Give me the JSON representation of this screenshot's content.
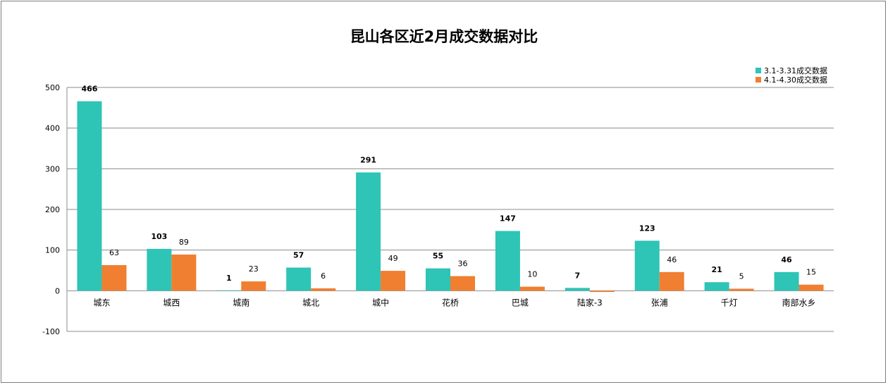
{
  "chart_data": {
    "type": "bar",
    "title": "昆山各区近2月成交数据对比",
    "categories": [
      "城东",
      "城西",
      "城南",
      "城北",
      "城中",
      "花桥",
      "巴城",
      "陆家-3",
      "张浦",
      "千灯",
      "南部水乡"
    ],
    "series": [
      {
        "name": "3.1-3.31成交数据",
        "color": "#2ec4b6",
        "values": [
          466,
          103,
          1,
          57,
          291,
          55,
          147,
          7,
          123,
          21,
          46
        ],
        "labels": [
          "466",
          "103",
          "1",
          "57",
          "291",
          "55",
          "147",
          "7",
          "123",
          "21",
          "46"
        ]
      },
      {
        "name": "4.1-4.30成交数据",
        "color": "#f07f31",
        "values": [
          63,
          89,
          23,
          6,
          49,
          36,
          10,
          -3,
          46,
          5,
          15
        ],
        "labels": [
          "63",
          "89",
          "23",
          "6",
          "49",
          "36",
          "10",
          "",
          "46",
          "5",
          "15"
        ]
      }
    ],
    "ylim": [
      -100,
      500
    ],
    "yticks": [
      "-100",
      "0",
      "100",
      "200",
      "300",
      "400",
      "500"
    ],
    "grid": true,
    "legend_position": "top-right"
  }
}
